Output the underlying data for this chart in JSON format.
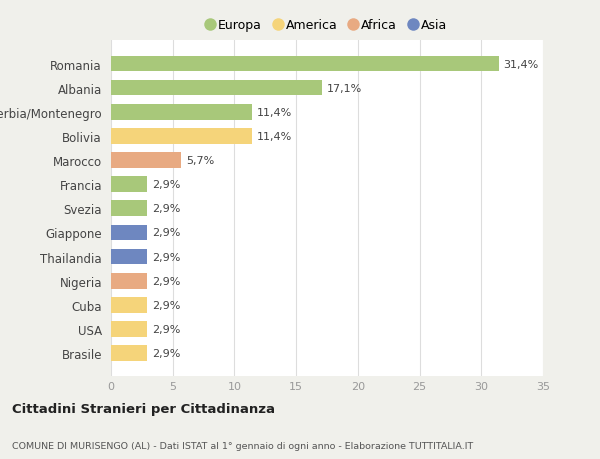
{
  "countries": [
    "Romania",
    "Albania",
    "Serbia/Montenegro",
    "Bolivia",
    "Marocco",
    "Francia",
    "Svezia",
    "Giappone",
    "Thailandia",
    "Nigeria",
    "Cuba",
    "USA",
    "Brasile"
  ],
  "values": [
    31.4,
    17.1,
    11.4,
    11.4,
    5.7,
    2.9,
    2.9,
    2.9,
    2.9,
    2.9,
    2.9,
    2.9,
    2.9
  ],
  "labels": [
    "31,4%",
    "17,1%",
    "11,4%",
    "11,4%",
    "5,7%",
    "2,9%",
    "2,9%",
    "2,9%",
    "2,9%",
    "2,9%",
    "2,9%",
    "2,9%",
    "2,9%"
  ],
  "colors": [
    "#a8c87a",
    "#a8c87a",
    "#a8c87a",
    "#f5d47a",
    "#e8aa82",
    "#a8c87a",
    "#a8c87a",
    "#6e87c0",
    "#6e87c0",
    "#e8aa82",
    "#f5d47a",
    "#f5d47a",
    "#f5d47a"
  ],
  "legend_labels": [
    "Europa",
    "America",
    "Africa",
    "Asia"
  ],
  "legend_colors": [
    "#a8c87a",
    "#f5d47a",
    "#e8aa82",
    "#6e87c0"
  ],
  "title": "Cittadini Stranieri per Cittadinanza",
  "subtitle": "COMUNE DI MURISENGO (AL) - Dati ISTAT al 1° gennaio di ogni anno - Elaborazione TUTTITALIA.IT",
  "xlim": [
    0,
    35
  ],
  "xticks": [
    0,
    5,
    10,
    15,
    20,
    25,
    30,
    35
  ],
  "background_color": "#f0f0eb",
  "bar_background": "#ffffff"
}
